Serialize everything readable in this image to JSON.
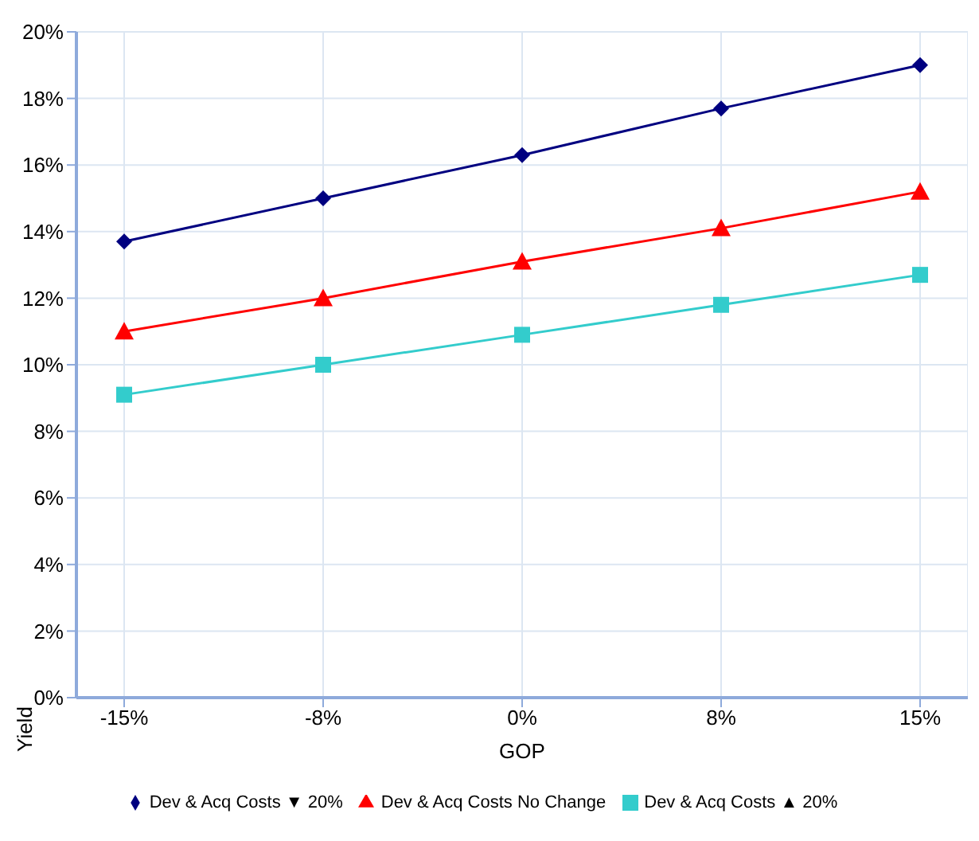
{
  "chart_data": {
    "type": "line",
    "xlabel": "GOP",
    "ylabel": "Yield",
    "categories": [
      "-15%",
      "-8%",
      "0%",
      "8%",
      "15%"
    ],
    "series": [
      {
        "name": "Dev & Acq Costs ▼ 20%",
        "color": "#000080",
        "marker": "diamond",
        "values": [
          13.7,
          15.0,
          16.3,
          17.7,
          19.0
        ]
      },
      {
        "name": "Dev & Acq Costs No Change",
        "color": "#ff0000",
        "marker": "triangle",
        "values": [
          11.0,
          12.0,
          13.1,
          14.1,
          15.2
        ]
      },
      {
        "name": "Dev & Acq Costs ▲ 20%",
        "color": "#33cccc",
        "marker": "square",
        "values": [
          9.1,
          10.0,
          10.9,
          11.8,
          12.7
        ]
      }
    ],
    "ylim": [
      0,
      20
    ],
    "yticks": [
      {
        "value": 0,
        "label": "0%"
      },
      {
        "value": 2,
        "label": "2%"
      },
      {
        "value": 4,
        "label": "4%"
      },
      {
        "value": 6,
        "label": "6%"
      },
      {
        "value": 8,
        "label": "8%"
      },
      {
        "value": 10,
        "label": "10%"
      },
      {
        "value": 12,
        "label": "12%"
      },
      {
        "value": 14,
        "label": "14%"
      },
      {
        "value": 16,
        "label": "16%"
      },
      {
        "value": 18,
        "label": "18%"
      },
      {
        "value": 20,
        "label": "20%"
      }
    ],
    "grid": true,
    "legend": "bottom",
    "line_style": "solid"
  }
}
